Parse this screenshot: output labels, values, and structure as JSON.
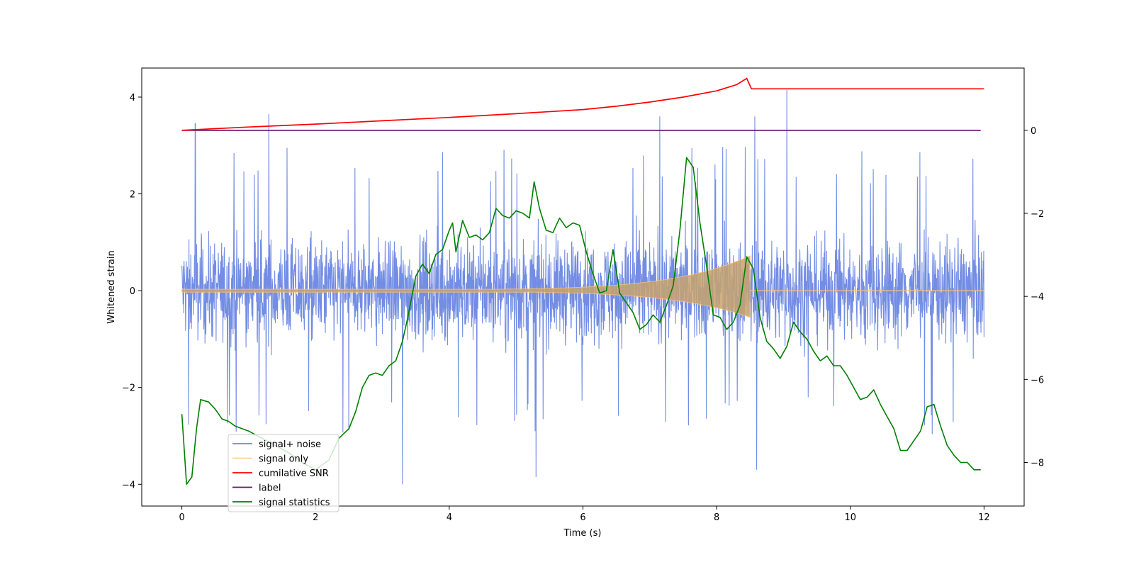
{
  "chart_data": {
    "type": "line",
    "title": "",
    "xlabel": "Time (s)",
    "ylabel": "Whitened strain",
    "y2label": "",
    "xlim": [
      -0.6,
      12.6
    ],
    "ylim": [
      -4.45,
      4.6
    ],
    "y2lim": [
      -9.05,
      1.5
    ],
    "xticks": [
      0,
      2,
      4,
      6,
      8,
      10,
      12
    ],
    "yticks": [
      -4,
      -2,
      0,
      2,
      4
    ],
    "y2ticks": [
      -8,
      -6,
      -4,
      -2,
      0
    ],
    "xtick_labels": [
      "0",
      "2",
      "4",
      "6",
      "8",
      "10",
      "12"
    ],
    "ytick_labels": [
      "−4",
      "−2",
      "0",
      "2",
      "4"
    ],
    "y2tick_labels": [
      "−8",
      "−6",
      "−4",
      "−2",
      "0"
    ],
    "grid": false,
    "legend_position": "lower-left",
    "noise": {
      "x_range": [
        0,
        12
      ],
      "amplitude_typical": [
        -1.9,
        2.0
      ],
      "peak_max": 4.15,
      "peak_min": -4.05,
      "notable_spikes": [
        {
          "x": 0.2,
          "y": 3.45
        },
        {
          "x": 1.3,
          "y": 3.65
        },
        {
          "x": 7.15,
          "y": 3.6
        },
        {
          "x": 8.57,
          "y": 3.6
        },
        {
          "x": 9.05,
          "y": 4.15
        },
        {
          "x": 3.3,
          "y": -4.0
        },
        {
          "x": 5.3,
          "y": -3.85
        },
        {
          "x": 8.6,
          "y": -3.7
        }
      ]
    },
    "signal_chirp": {
      "start": 0,
      "end": 8.5,
      "amplitude_start": 0.03,
      "amplitude_end_upper": 0.72,
      "amplitude_end_lower": -0.55
    },
    "series": [
      {
        "name": "signal+ noise",
        "color": "#6c87e3",
        "axis": "left",
        "kind": "noise"
      },
      {
        "name": "signal only",
        "color": "#ffc06b",
        "axis": "left",
        "kind": "chirp"
      },
      {
        "name": "cumilative SNR",
        "color": "#ff0000",
        "axis": "right",
        "points": [
          [
            0,
            0.0
          ],
          [
            1,
            0.08
          ],
          [
            2,
            0.15
          ],
          [
            3,
            0.23
          ],
          [
            4,
            0.31
          ],
          [
            5,
            0.4
          ],
          [
            6,
            0.5
          ],
          [
            6.5,
            0.58
          ],
          [
            7,
            0.68
          ],
          [
            7.5,
            0.8
          ],
          [
            8,
            0.95
          ],
          [
            8.3,
            1.1
          ],
          [
            8.45,
            1.25
          ],
          [
            8.52,
            1.0
          ],
          [
            12,
            1.0
          ]
        ]
      },
      {
        "name": "label",
        "color": "#6a0d6a",
        "axis": "right",
        "points": [
          [
            0,
            0
          ],
          [
            11.95,
            0
          ]
        ]
      },
      {
        "name": "signal statistics",
        "color": "#008000",
        "axis": "left",
        "points": [
          [
            0,
            -2.55
          ],
          [
            0.07,
            -4.0
          ],
          [
            0.15,
            -3.85
          ],
          [
            0.22,
            -2.85
          ],
          [
            0.28,
            -2.25
          ],
          [
            0.4,
            -2.3
          ],
          [
            0.5,
            -2.45
          ],
          [
            0.6,
            -2.65
          ],
          [
            0.7,
            -2.7
          ],
          [
            0.8,
            -2.8
          ],
          [
            1.0,
            -2.9
          ],
          [
            1.2,
            -3.05
          ],
          [
            1.4,
            -3.2
          ],
          [
            1.6,
            -3.35
          ],
          [
            1.8,
            -3.55
          ],
          [
            2.0,
            -3.7
          ],
          [
            2.2,
            -3.5
          ],
          [
            2.35,
            -3.05
          ],
          [
            2.5,
            -2.85
          ],
          [
            2.6,
            -2.5
          ],
          [
            2.7,
            -2.0
          ],
          [
            2.8,
            -1.75
          ],
          [
            2.9,
            -1.7
          ],
          [
            3.0,
            -1.75
          ],
          [
            3.1,
            -1.55
          ],
          [
            3.2,
            -1.45
          ],
          [
            3.3,
            -1.05
          ],
          [
            3.38,
            -0.55
          ],
          [
            3.45,
            -0.05
          ],
          [
            3.5,
            0.3
          ],
          [
            3.6,
            0.55
          ],
          [
            3.7,
            0.35
          ],
          [
            3.8,
            0.75
          ],
          [
            3.9,
            0.85
          ],
          [
            4.0,
            1.25
          ],
          [
            4.05,
            1.4
          ],
          [
            4.1,
            0.8
          ],
          [
            4.2,
            1.45
          ],
          [
            4.3,
            1.1
          ],
          [
            4.4,
            1.15
          ],
          [
            4.5,
            1.05
          ],
          [
            4.6,
            1.2
          ],
          [
            4.7,
            1.7
          ],
          [
            4.8,
            1.55
          ],
          [
            4.9,
            1.5
          ],
          [
            5.0,
            1.65
          ],
          [
            5.1,
            1.6
          ],
          [
            5.2,
            1.5
          ],
          [
            5.27,
            2.25
          ],
          [
            5.35,
            1.7
          ],
          [
            5.45,
            1.25
          ],
          [
            5.55,
            1.2
          ],
          [
            5.65,
            1.5
          ],
          [
            5.75,
            1.3
          ],
          [
            5.85,
            1.4
          ],
          [
            5.95,
            1.35
          ],
          [
            6.05,
            0.8
          ],
          [
            6.15,
            0.35
          ],
          [
            6.25,
            -0.05
          ],
          [
            6.35,
            0.0
          ],
          [
            6.45,
            0.85
          ],
          [
            6.55,
            -0.05
          ],
          [
            6.65,
            -0.25
          ],
          [
            6.75,
            -0.45
          ],
          [
            6.85,
            -0.8
          ],
          [
            6.95,
            -0.7
          ],
          [
            7.05,
            -0.5
          ],
          [
            7.15,
            -0.65
          ],
          [
            7.25,
            -0.3
          ],
          [
            7.35,
            0.1
          ],
          [
            7.45,
            1.25
          ],
          [
            7.55,
            2.75
          ],
          [
            7.65,
            2.55
          ],
          [
            7.75,
            1.4
          ],
          [
            7.85,
            0.5
          ],
          [
            7.95,
            -0.5
          ],
          [
            8.05,
            -0.55
          ],
          [
            8.15,
            -0.8
          ],
          [
            8.25,
            -0.65
          ],
          [
            8.35,
            -0.3
          ],
          [
            8.45,
            0.7
          ],
          [
            8.55,
            0.45
          ],
          [
            8.65,
            -0.55
          ],
          [
            8.75,
            -1.05
          ],
          [
            8.85,
            -1.2
          ],
          [
            8.95,
            -1.4
          ],
          [
            9.05,
            -1.15
          ],
          [
            9.15,
            -0.65
          ],
          [
            9.25,
            -0.85
          ],
          [
            9.35,
            -1.0
          ],
          [
            9.45,
            -1.25
          ],
          [
            9.55,
            -1.45
          ],
          [
            9.65,
            -1.35
          ],
          [
            9.75,
            -1.55
          ],
          [
            9.85,
            -1.55
          ],
          [
            9.95,
            -1.75
          ],
          [
            10.05,
            -2.0
          ],
          [
            10.15,
            -2.25
          ],
          [
            10.25,
            -2.2
          ],
          [
            10.35,
            -2.05
          ],
          [
            10.45,
            -2.35
          ],
          [
            10.55,
            -2.6
          ],
          [
            10.65,
            -2.85
          ],
          [
            10.75,
            -3.3
          ],
          [
            10.85,
            -3.3
          ],
          [
            10.95,
            -3.1
          ],
          [
            11.05,
            -2.9
          ],
          [
            11.15,
            -2.4
          ],
          [
            11.25,
            -2.35
          ],
          [
            11.35,
            -2.8
          ],
          [
            11.45,
            -3.2
          ],
          [
            11.55,
            -3.4
          ],
          [
            11.65,
            -3.55
          ],
          [
            11.75,
            -3.55
          ],
          [
            11.85,
            -3.7
          ],
          [
            11.95,
            -3.7
          ]
        ]
      }
    ]
  }
}
